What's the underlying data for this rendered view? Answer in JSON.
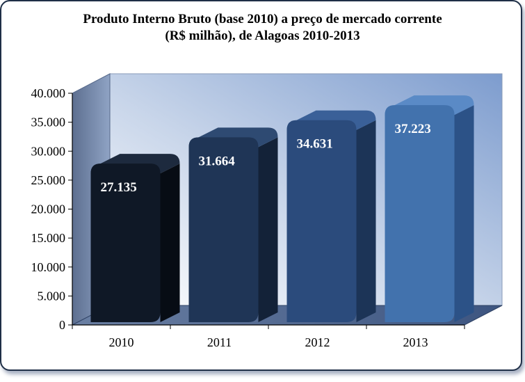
{
  "title_lines": [
    "Produto Interno Bruto (base 2010) a preço de mercado corrente",
    "(R$ milhão), de Alagoas 2010-2013"
  ],
  "chart_data": {
    "type": "bar",
    "title": "Produto Interno Bruto (base 2010) a preço de mercado corrente (R$ milhão), de Alagoas 2010-2013",
    "categories": [
      "2010",
      "2011",
      "2012",
      "2013"
    ],
    "values": [
      27135,
      31664,
      34631,
      37223
    ],
    "value_labels": [
      "27.135",
      "31.664",
      "34.631",
      "37.223"
    ],
    "ylim": [
      0,
      40000
    ],
    "yticks": [
      0,
      5000,
      10000,
      15000,
      20000,
      25000,
      30000,
      35000,
      40000
    ],
    "ytick_labels": [
      "0",
      "5.000",
      "10.000",
      "15.000",
      "20.000",
      "25.000",
      "30.000",
      "35.000",
      "40.000"
    ],
    "grid": false,
    "legend": "none",
    "bar_colors": [
      "#0f1826",
      "#1f3556",
      "#2b4b7c",
      "#4272ad"
    ],
    "bar_side_colors": [
      "#070c14",
      "#132238",
      "#1c3457",
      "#2c5287"
    ],
    "bar_top_colors": [
      "#1d2a3e",
      "#2e4a72",
      "#3a6098",
      "#5a8ac6"
    ]
  }
}
